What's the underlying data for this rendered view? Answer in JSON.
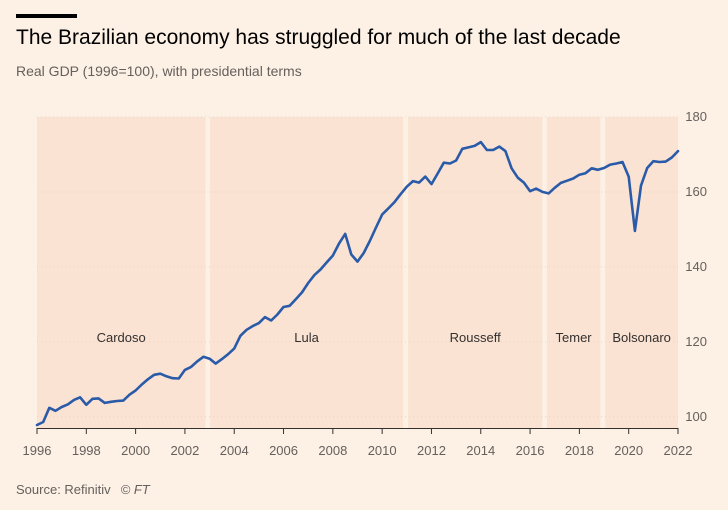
{
  "header": {
    "title": "The Brazilian economy has struggled for much of the last decade",
    "subtitle": "Real GDP (1996=100), with presidential terms"
  },
  "footer": {
    "source": "Source: Refinitiv",
    "credit": "© FT"
  },
  "colors": {
    "background": "#fdf1e6",
    "term_band": "#fbe3d4",
    "gridline": "#e0d6cc",
    "line": "#2a5ba8"
  },
  "chart_data": {
    "type": "line",
    "title": "The Brazilian economy has struggled for much of the last decade",
    "subtitle": "Real GDP (1996=100), with presidential terms",
    "xlim": [
      1996,
      2022
    ],
    "ylim": [
      97,
      180
    ],
    "x_ticks": [
      "1996",
      "1998",
      "2000",
      "2002",
      "2004",
      "2006",
      "2008",
      "2010",
      "2012",
      "2014",
      "2016",
      "2018",
      "2020",
      "2022"
    ],
    "y_ticks": [
      "100",
      "120",
      "140",
      "160",
      "180"
    ],
    "y_axis_side": "right",
    "grid": "horizontal, dotted",
    "terms": [
      {
        "name": "Cardoso",
        "start": 1996,
        "end": 2002.83
      },
      {
        "name": "Lula",
        "start": 2003.02,
        "end": 2010.85
      },
      {
        "name": "Rousseff",
        "start": 2011.05,
        "end": 2016.5
      },
      {
        "name": "Temer",
        "start": 2016.68,
        "end": 2018.85
      },
      {
        "name": "Bolsonaro",
        "start": 2019.05,
        "end": 2022
      }
    ],
    "series": [
      {
        "name": "Real GDP",
        "x": [
          1996,
          1996.25,
          1996.5,
          1996.75,
          1997,
          1997.25,
          1997.5,
          1997.75,
          1998,
          1998.25,
          1998.5,
          1998.75,
          1999,
          1999.25,
          1999.5,
          1999.75,
          2000,
          2000.25,
          2000.5,
          2000.75,
          2001,
          2001.25,
          2001.5,
          2001.75,
          2002,
          2002.25,
          2002.5,
          2002.75,
          2003,
          2003.25,
          2003.5,
          2003.75,
          2004,
          2004.25,
          2004.5,
          2004.75,
          2005,
          2005.25,
          2005.5,
          2005.75,
          2006,
          2006.25,
          2006.5,
          2006.75,
          2007,
          2007.25,
          2007.5,
          2007.75,
          2008,
          2008.25,
          2008.5,
          2008.75,
          2009,
          2009.25,
          2009.5,
          2009.75,
          2010,
          2010.25,
          2010.5,
          2010.75,
          2011,
          2011.25,
          2011.5,
          2011.75,
          2012,
          2012.25,
          2012.5,
          2012.75,
          2013,
          2013.25,
          2013.5,
          2013.75,
          2014,
          2014.25,
          2014.5,
          2014.75,
          2015,
          2015.25,
          2015.5,
          2015.75,
          2016,
          2016.25,
          2016.5,
          2016.75,
          2017,
          2017.25,
          2017.5,
          2017.75,
          2018,
          2018.25,
          2018.5,
          2018.75,
          2019,
          2019.25,
          2019.5,
          2019.75,
          2020,
          2020.25,
          2020.5,
          2020.75,
          2021,
          2021.25,
          2021.5,
          2021.75,
          2022
        ],
        "y": [
          97.8,
          98.6,
          102.4,
          101.6,
          102.6,
          103.3,
          104.5,
          105.2,
          103.2,
          104.8,
          104.9,
          103.7,
          104.0,
          104.2,
          104.3,
          105.9,
          107.0,
          108.6,
          110.0,
          111.2,
          111.5,
          110.8,
          110.3,
          110.2,
          112.5,
          113.3,
          114.8,
          116.0,
          115.5,
          114.2,
          115.4,
          116.7,
          118.2,
          121.6,
          123.2,
          124.2,
          125.0,
          126.6,
          125.7,
          127.3,
          129.3,
          129.6,
          131.4,
          133.2,
          135.7,
          137.8,
          139.3,
          141.2,
          143.0,
          146.2,
          148.8,
          143.3,
          141.4,
          143.7,
          146.9,
          150.5,
          154.0,
          155.6,
          157.3,
          159.4,
          161.4,
          162.9,
          162.5,
          164.1,
          162.1,
          164.9,
          167.8,
          167.6,
          168.4,
          171.5,
          171.9,
          172.3,
          173.3,
          171.2,
          171.2,
          172.1,
          170.9,
          166.3,
          163.8,
          162.5,
          160.2,
          160.9,
          160.0,
          159.6,
          161.1,
          162.4,
          163.0,
          163.6,
          164.6,
          165.0,
          166.3,
          165.9,
          166.4,
          167.3,
          167.6,
          168.0,
          164.1,
          149.6,
          161.7,
          166.4,
          168.2,
          168.0,
          168.1,
          169.2,
          170.9
        ]
      }
    ]
  }
}
